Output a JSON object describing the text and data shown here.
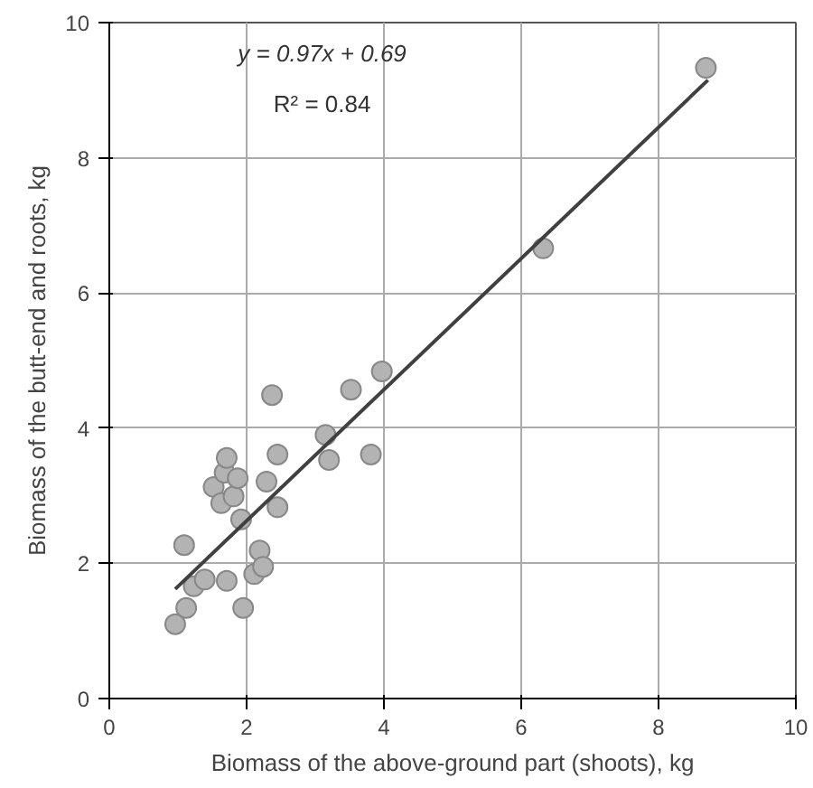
{
  "chart_data": {
    "type": "scatter",
    "xlabel": "Biomass of the above-ground part (shoots), kg",
    "ylabel": "Biomass of the butt-end and roots, kg",
    "annotations": [
      "y = 0.97x + 0.69",
      "R² = 0.84"
    ],
    "xlim": [
      0,
      10
    ],
    "ylim": [
      0,
      10
    ],
    "xticks": [
      0,
      2,
      4,
      6,
      8,
      10
    ],
    "yticks": [
      0,
      2,
      4,
      6,
      8,
      10
    ],
    "grid": true,
    "series": [
      {
        "marker": "circle",
        "color": "#b3b3b3",
        "x": [
          0.96,
          1.12,
          1.09,
          1.23,
          1.39,
          1.52,
          1.63,
          1.68,
          1.71,
          1.71,
          1.81,
          1.87,
          1.92,
          1.95,
          2.11,
          2.19,
          2.24,
          2.29,
          2.37,
          2.45,
          2.45,
          3.15,
          3.2,
          3.52,
          3.81,
          3.97,
          6.32,
          8.69
        ],
        "values": [
          1.1,
          1.34,
          2.27,
          1.66,
          1.76,
          3.13,
          2.89,
          3.34,
          3.56,
          1.74,
          2.99,
          3.26,
          2.65,
          1.34,
          1.84,
          2.19,
          1.95,
          3.21,
          4.49,
          2.83,
          3.61,
          3.9,
          3.53,
          4.57,
          3.61,
          4.84,
          6.66,
          9.33
        ]
      },
      {
        "type": "line",
        "marker": "none",
        "color": "#404040",
        "x": [
          0.96,
          8.72
        ],
        "values": [
          1.62,
          9.15
        ]
      }
    ]
  }
}
